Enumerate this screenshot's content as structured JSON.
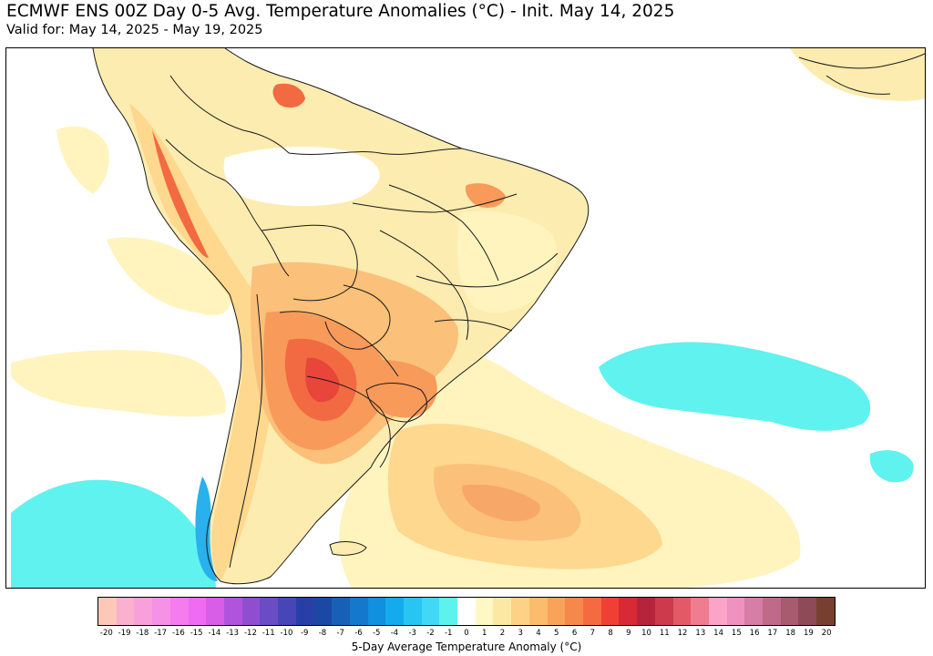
{
  "header": {
    "title": "ECMWF ENS 00Z Day 0-5 Avg. Temperature Anomalies (°C) - Init. May 14, 2025",
    "subtitle": "Valid for: May 14, 2025 - May 19, 2025"
  },
  "colorbar": {
    "label": "5-Day Average Temperature Anomaly (°C)",
    "ticks": [
      "-20",
      "-19",
      "-18",
      "-17",
      "-16",
      "-15",
      "-14",
      "-13",
      "-12",
      "-11",
      "-10",
      "-9",
      "-8",
      "-7",
      "-6",
      "-5",
      "-4",
      "-3",
      "-2",
      "-1",
      "0",
      "1",
      "2",
      "3",
      "4",
      "5",
      "6",
      "7",
      "8",
      "9",
      "10",
      "11",
      "12",
      "13",
      "14",
      "15",
      "16",
      "17",
      "18",
      "19",
      "20"
    ],
    "colors": [
      "#fdc8b8",
      "#fbb0d0",
      "#f7a0dc",
      "#f592e6",
      "#f47cee",
      "#ef6cf2",
      "#d85ee8",
      "#b054dc",
      "#8f4ed0",
      "#6a4cc4",
      "#4646b8",
      "#2a3ea8",
      "#1a48a4",
      "#1660b8",
      "#1478cc",
      "#1090de",
      "#14aaec",
      "#28c4f2",
      "#40d8f4",
      "#5ef2ee",
      "#ffffff",
      "#fff8c4",
      "#fde7a4",
      "#fdd286",
      "#fbbc6e",
      "#f9a25a",
      "#f7884c",
      "#f56a40",
      "#f04036",
      "#d82a34",
      "#b4243a",
      "#cc3a4c",
      "#e25a66",
      "#f07c90",
      "#fca4c8",
      "#f092c0",
      "#d67ea6",
      "#c06a8a",
      "#a85a70",
      "#8e4a56",
      "#764030"
    ]
  },
  "map": {
    "region": "South America",
    "colors": {
      "warm_light": "#fdecb0",
      "warm_1": "#fddc94",
      "warm_2": "#fbc07a",
      "warm_3": "#f89a5a",
      "warm_4": "#f26a42",
      "warm_5": "#e8463a",
      "cold_1": "#60f2ee",
      "cold_2": "#2ab0ec",
      "border": "#1a1a1a"
    }
  }
}
